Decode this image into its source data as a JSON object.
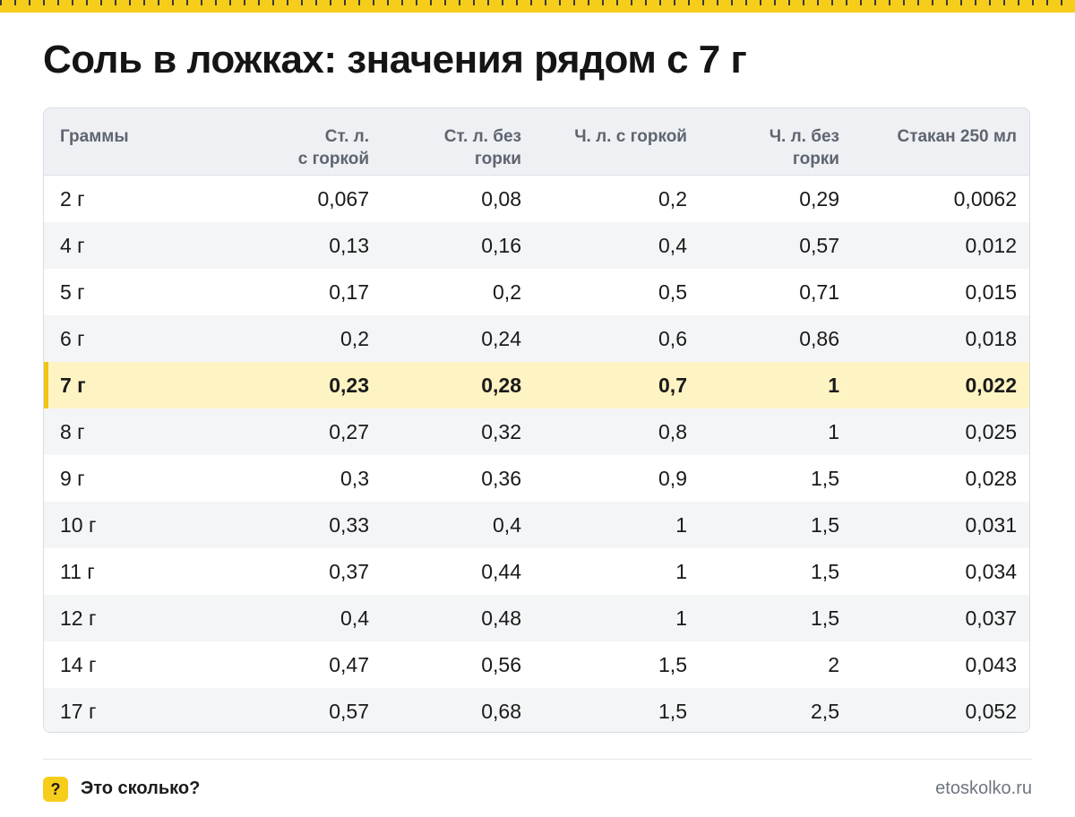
{
  "title": "Соль в ложках: значения рядом с 7 г",
  "table": {
    "headers": [
      "Граммы",
      "Ст. л.\nс горкой",
      "Ст. л. без\nгорки",
      "Ч. л. с горкой",
      "Ч. л. без\nгорки",
      "Стакан 250 мл"
    ],
    "highlight_row": 4,
    "rows": [
      [
        "2 г",
        "0,067",
        "0,08",
        "0,2",
        "0,29",
        "0,0062"
      ],
      [
        "4 г",
        "0,13",
        "0,16",
        "0,4",
        "0,57",
        "0,012"
      ],
      [
        "5 г",
        "0,17",
        "0,2",
        "0,5",
        "0,71",
        "0,015"
      ],
      [
        "6 г",
        "0,2",
        "0,24",
        "0,6",
        "0,86",
        "0,018"
      ],
      [
        "7 г",
        "0,23",
        "0,28",
        "0,7",
        "1",
        "0,022"
      ],
      [
        "8 г",
        "0,27",
        "0,32",
        "0,8",
        "1",
        "0,025"
      ],
      [
        "9 г",
        "0,3",
        "0,36",
        "0,9",
        "1,5",
        "0,028"
      ],
      [
        "10 г",
        "0,33",
        "0,4",
        "1",
        "1,5",
        "0,031"
      ],
      [
        "11 г",
        "0,37",
        "0,44",
        "1",
        "1,5",
        "0,034"
      ],
      [
        "12 г",
        "0,4",
        "0,48",
        "1",
        "1,5",
        "0,037"
      ],
      [
        "14 г",
        "0,47",
        "0,56",
        "1,5",
        "2",
        "0,043"
      ],
      [
        "17 г",
        "0,57",
        "0,68",
        "1,5",
        "2,5",
        "0,052"
      ]
    ]
  },
  "footer": {
    "badge": "?",
    "brand": "Это сколько?",
    "site": "etoskolko.ru"
  },
  "colors": {
    "accent": "#f6cd1b",
    "highlight_bg": "#fef3c3",
    "highlight_bar": "#f3c317",
    "header_bg": "#eef0f3",
    "alt_row_bg": "#f4f5f7"
  }
}
